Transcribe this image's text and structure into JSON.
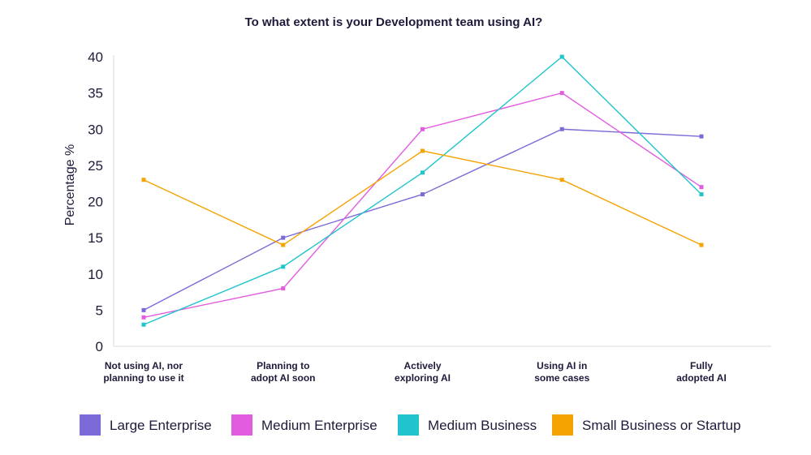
{
  "chart_data": {
    "type": "line",
    "title": "To what extent is your Development team using AI?",
    "xlabel": "",
    "ylabel": "Percentage %",
    "ylim": [
      0,
      40
    ],
    "yticks": [
      0,
      5,
      10,
      15,
      20,
      25,
      30,
      35,
      40
    ],
    "categories": [
      [
        "Not using AI, nor",
        "planning to use it"
      ],
      [
        "Planning to",
        "adopt AI soon"
      ],
      [
        "Actively",
        "exploring AI"
      ],
      [
        "Using AI in",
        "some cases"
      ],
      [
        "Fully",
        "adopted AI"
      ]
    ],
    "series": [
      {
        "name": "Large Enterprise",
        "color": "#7b6ad8",
        "values": [
          5,
          15,
          21,
          30,
          29
        ]
      },
      {
        "name": "Medium Enterprise",
        "color": "#e25ce0",
        "values": [
          4,
          8,
          30,
          35,
          22
        ]
      },
      {
        "name": "Medium Business",
        "color": "#1fc4cc",
        "values": [
          3,
          11,
          24,
          40,
          21
        ]
      },
      {
        "name": "Small Business or Startup",
        "color": "#f5a300",
        "values": [
          23,
          14,
          27,
          23,
          14
        ]
      }
    ],
    "legend_position": "bottom",
    "grid": false
  }
}
